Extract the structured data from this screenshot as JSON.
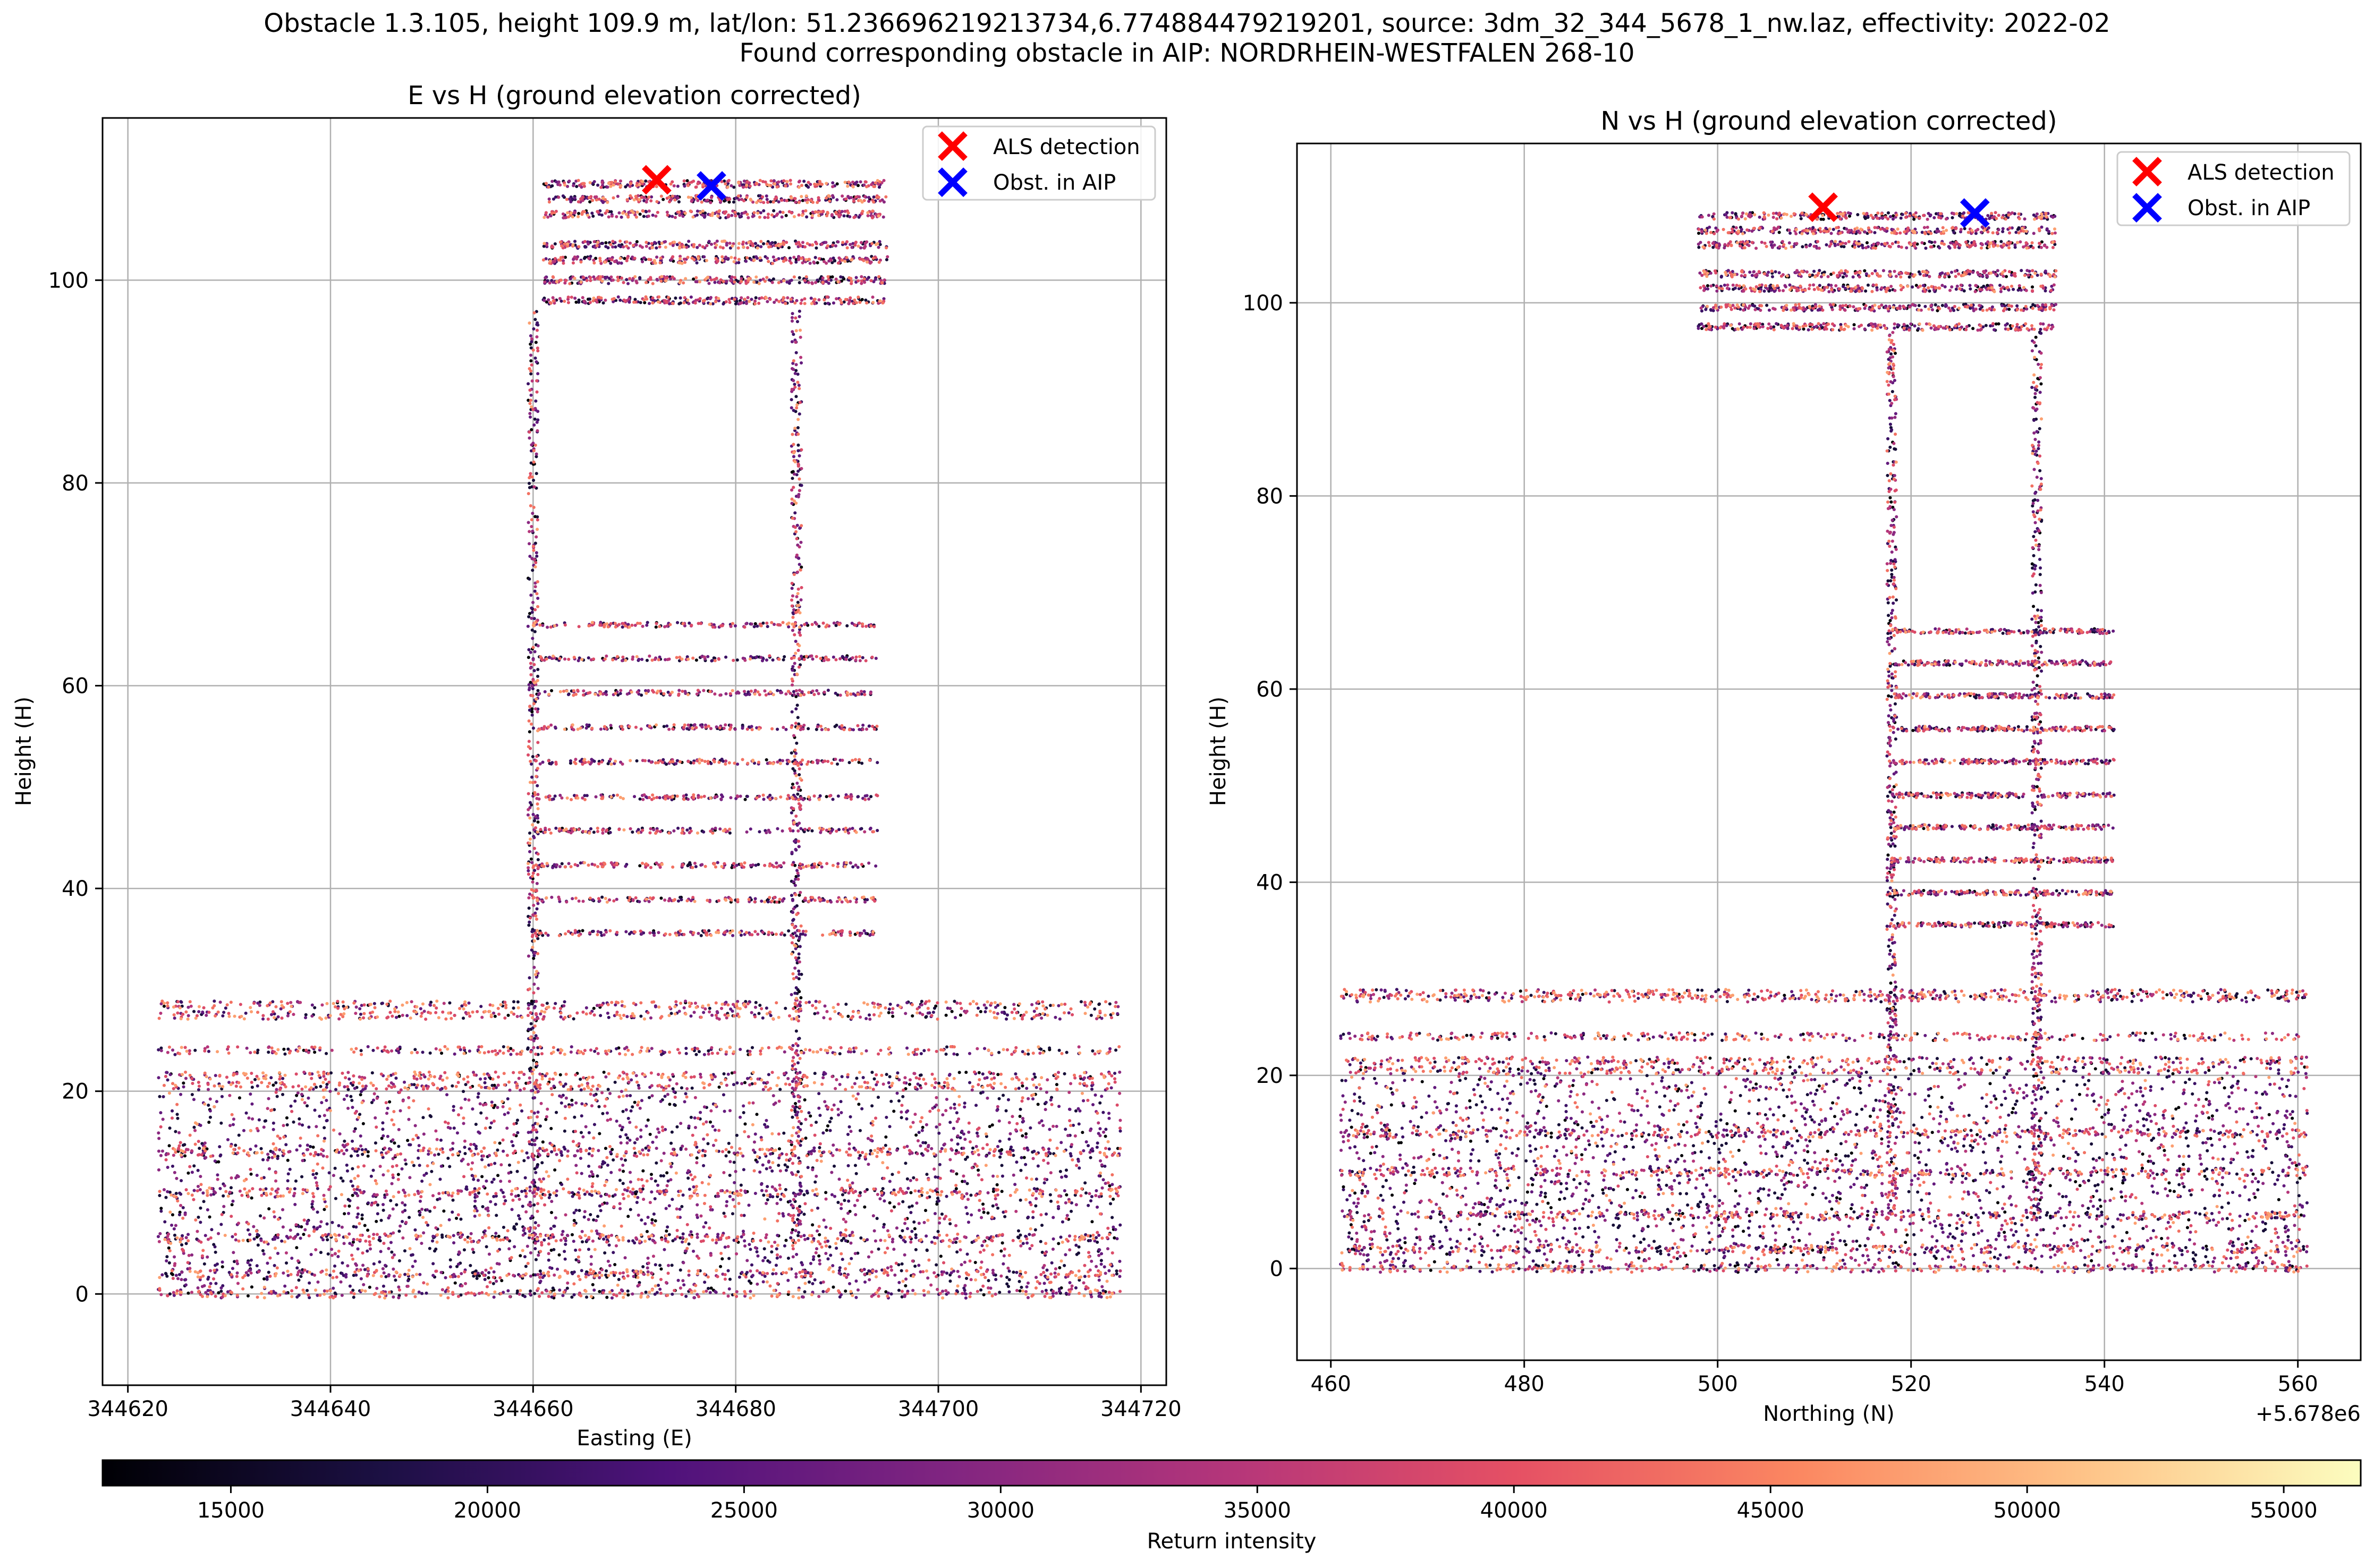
{
  "suptitle": {
    "line1": "Obstacle 1.3.105, height 109.9 m, lat/lon: 51.236696219213734,6.774884479219201, source: 3dm_32_344_5678_1_nw.laz, effectivity: 2022-02",
    "line2": "Found corresponding obstacle in AIP: NORDRHEIN-WESTFALEN 268-10"
  },
  "colors": {
    "grid": "#b0b0b0",
    "als_marker": "#ff0000",
    "aip_marker": "#0000ff",
    "colormap": [
      "#000004",
      "#1c1044",
      "#4f127b",
      "#812581",
      "#b5367a",
      "#e55064",
      "#fb8761",
      "#fec287",
      "#fcfdbf"
    ]
  },
  "chart_data": [
    {
      "type": "scatter",
      "title": "E vs H (ground elevation corrected)",
      "xlabel": "Easting (E)",
      "ylabel": "Height (H)",
      "xlim": [
        344617.5,
        344722.5
      ],
      "ylim": [
        -9,
        116
      ],
      "xticks": [
        344620,
        344640,
        344660,
        344680,
        344700,
        344720
      ],
      "xtick_labels": [
        "344620",
        "344640",
        "344660",
        "344680",
        "344700",
        "344720"
      ],
      "yticks": [
        0,
        20,
        40,
        60,
        80,
        100
      ],
      "ytick_labels": [
        "0",
        "20",
        "40",
        "60",
        "80",
        "100"
      ],
      "grid": true,
      "legend_placement": "top-right",
      "markers": [
        {
          "name": "ALS detection",
          "x": 344672.2,
          "y": 109.9,
          "color": "#ff0000"
        },
        {
          "name": "Obst. in AIP",
          "x": 344677.6,
          "y": 109.3,
          "color": "#0000ff"
        }
      ],
      "point_cloud": {
        "tower_left_edge": 344660,
        "tower_right_edge": 344686,
        "roof_span": [
          344661,
          344695
        ],
        "roof_levels": [
          109.5,
          108.0,
          106.5,
          103.5,
          102.0,
          100.0,
          98.0
        ],
        "floor_levels": [
          35.6,
          38.9,
          42.3,
          45.7,
          49.0,
          52.5,
          55.9,
          59.3,
          62.7,
          66.0
        ],
        "podium_span": [
          344623,
          344718
        ],
        "podium_levels": [
          0,
          2,
          5.5,
          10,
          14,
          20.5,
          21.5,
          24,
          27.5,
          28.5
        ]
      }
    },
    {
      "type": "scatter",
      "title": "N vs H (ground elevation corrected)",
      "xlabel": "Northing (N)",
      "ylabel": "Height (H)",
      "offset_label": "+5.678e6",
      "xlim": [
        456.5,
        566.5
      ],
      "ylim": [
        -9.5,
        116.5
      ],
      "xticks": [
        460,
        480,
        500,
        520,
        540,
        560
      ],
      "xtick_labels": [
        "460",
        "480",
        "500",
        "520",
        "540",
        "560"
      ],
      "yticks": [
        0,
        20,
        40,
        60,
        80,
        100
      ],
      "ytick_labels": [
        "0",
        "20",
        "40",
        "60",
        "80",
        "100"
      ],
      "grid": true,
      "legend_placement": "top-right",
      "markers": [
        {
          "name": "ALS detection",
          "x": 510.9,
          "y": 109.9,
          "color": "#ff0000"
        },
        {
          "name": "Obst. in AIP",
          "x": 526.6,
          "y": 109.3,
          "color": "#0000ff"
        }
      ],
      "point_cloud": {
        "tower_left_edge": 518,
        "tower_right_edge": 533,
        "roof_span": [
          498,
          535
        ],
        "roof_levels": [
          109.0,
          107.5,
          106.0,
          103.0,
          101.5,
          99.5,
          97.5
        ],
        "floor_levels": [
          35.6,
          38.9,
          42.3,
          45.7,
          49.0,
          52.5,
          55.9,
          59.3,
          62.7,
          66.0
        ],
        "podium_span": [
          461,
          561
        ],
        "podium_levels": [
          0,
          2,
          5.5,
          10,
          14,
          20.5,
          21.5,
          24,
          28,
          28.5
        ]
      }
    }
  ],
  "colorbar": {
    "label": "Return intensity",
    "range": [
      12500,
      56500
    ],
    "ticks": [
      15000,
      20000,
      25000,
      30000,
      35000,
      40000,
      45000,
      50000,
      55000
    ],
    "tick_labels": [
      "15000",
      "20000",
      "25000",
      "30000",
      "35000",
      "40000",
      "45000",
      "50000",
      "55000"
    ]
  }
}
